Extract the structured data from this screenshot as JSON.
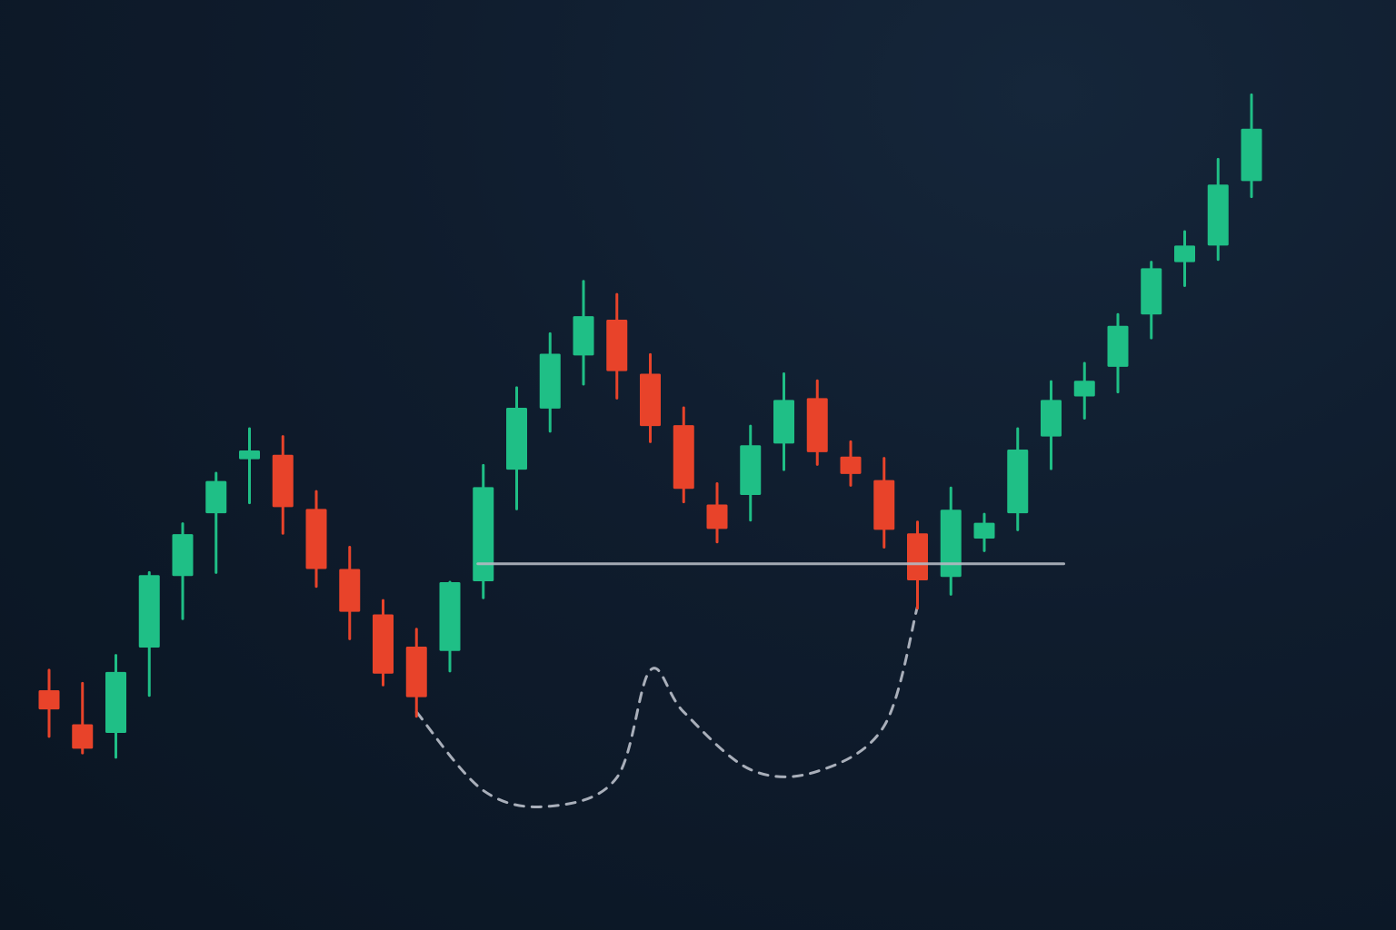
{
  "chart_data": {
    "type": "candlestick",
    "title": "",
    "xlabel": "",
    "ylabel": "",
    "grid": false,
    "legend": "none",
    "axes_visible": false,
    "colors": {
      "up": "#1fbf86",
      "down": "#e8432a",
      "neckline": "#b4b9c2",
      "cup_guide": "#a9afba",
      "background": "#0f1c2d"
    },
    "ylim": [
      0,
      100
    ],
    "candles": [
      {
        "index": 1,
        "open": 25.0,
        "high": 27.3,
        "low": 19.7,
        "close": 22.8
      },
      {
        "index": 2,
        "open": 21.1,
        "high": 25.8,
        "low": 17.8,
        "close": 18.3
      },
      {
        "index": 3,
        "open": 20.1,
        "high": 29.0,
        "low": 17.3,
        "close": 27.1
      },
      {
        "index": 4,
        "open": 29.9,
        "high": 38.5,
        "low": 24.4,
        "close": 38.2
      },
      {
        "index": 5,
        "open": 38.1,
        "high": 44.1,
        "low": 33.2,
        "close": 42.9
      },
      {
        "index": 6,
        "open": 45.3,
        "high": 49.9,
        "low": 38.5,
        "close": 49.0
      },
      {
        "index": 7,
        "open": 51.5,
        "high": 55.0,
        "low": 46.5,
        "close": 52.5
      },
      {
        "index": 8,
        "open": 52.0,
        "high": 54.1,
        "low": 43.0,
        "close": 46.0
      },
      {
        "index": 9,
        "open": 45.8,
        "high": 47.8,
        "low": 36.9,
        "close": 38.9
      },
      {
        "index": 10,
        "open": 38.9,
        "high": 41.4,
        "low": 30.9,
        "close": 34.0
      },
      {
        "index": 11,
        "open": 33.7,
        "high": 35.3,
        "low": 25.6,
        "close": 26.9
      },
      {
        "index": 12,
        "open": 30.0,
        "high": 32.0,
        "low": 22.0,
        "close": 24.2
      },
      {
        "index": 13,
        "open": 29.5,
        "high": 37.4,
        "low": 27.2,
        "close": 37.4
      },
      {
        "index": 14,
        "open": 37.5,
        "high": 50.8,
        "low": 35.6,
        "close": 48.3
      },
      {
        "index": 15,
        "open": 50.3,
        "high": 59.7,
        "low": 45.8,
        "close": 57.4
      },
      {
        "index": 16,
        "open": 57.3,
        "high": 65.9,
        "low": 54.7,
        "close": 63.6
      },
      {
        "index": 17,
        "open": 63.4,
        "high": 71.9,
        "low": 60.1,
        "close": 67.9
      },
      {
        "index": 18,
        "open": 67.5,
        "high": 70.4,
        "low": 58.5,
        "close": 61.6
      },
      {
        "index": 19,
        "open": 61.3,
        "high": 63.5,
        "low": 53.5,
        "close": 55.3
      },
      {
        "index": 20,
        "open": 55.4,
        "high": 57.4,
        "low": 46.6,
        "close": 48.1
      },
      {
        "index": 21,
        "open": 46.3,
        "high": 48.7,
        "low": 42.0,
        "close": 43.5
      },
      {
        "index": 22,
        "open": 47.4,
        "high": 55.3,
        "low": 44.5,
        "close": 53.1
      },
      {
        "index": 23,
        "open": 53.3,
        "high": 61.3,
        "low": 50.3,
        "close": 58.3
      },
      {
        "index": 24,
        "open": 58.5,
        "high": 60.5,
        "low": 50.9,
        "close": 52.3
      },
      {
        "index": 25,
        "open": 51.8,
        "high": 53.5,
        "low": 48.5,
        "close": 49.8
      },
      {
        "index": 26,
        "open": 49.1,
        "high": 51.6,
        "low": 41.4,
        "close": 43.4
      },
      {
        "index": 27,
        "open": 43.0,
        "high": 44.3,
        "low": 34.4,
        "close": 37.6
      },
      {
        "index": 28,
        "open": 38.0,
        "high": 48.2,
        "low": 36.0,
        "close": 45.7
      },
      {
        "index": 29,
        "open": 42.4,
        "high": 45.2,
        "low": 41.0,
        "close": 44.2
      },
      {
        "index": 30,
        "open": 45.3,
        "high": 55.0,
        "low": 43.4,
        "close": 52.6
      },
      {
        "index": 31,
        "open": 54.1,
        "high": 60.4,
        "low": 50.4,
        "close": 58.3
      },
      {
        "index": 32,
        "open": 58.7,
        "high": 62.5,
        "low": 56.2,
        "close": 60.5
      },
      {
        "index": 33,
        "open": 62.1,
        "high": 68.1,
        "low": 59.2,
        "close": 66.8
      },
      {
        "index": 34,
        "open": 68.1,
        "high": 74.1,
        "low": 65.4,
        "close": 73.4
      },
      {
        "index": 35,
        "open": 74.1,
        "high": 77.6,
        "low": 71.4,
        "close": 76.0
      },
      {
        "index": 36,
        "open": 76.0,
        "high": 85.9,
        "low": 74.4,
        "close": 83.0
      },
      {
        "index": 37,
        "open": 83.4,
        "high": 93.3,
        "low": 81.6,
        "close": 89.4
      }
    ],
    "neckline": {
      "value": 39.5,
      "from_index": 14,
      "to_index": 31
    },
    "cup_guide": [
      {
        "index": 12,
        "value": 22.5
      },
      {
        "index": 14,
        "value": 13.5
      },
      {
        "index": 16,
        "value": 11.7
      },
      {
        "index": 18,
        "value": 15.0
      },
      {
        "index": 19,
        "value": 27.3
      },
      {
        "index": 20,
        "value": 22.5
      },
      {
        "index": 22,
        "value": 15.9
      },
      {
        "index": 24,
        "value": 15.7
      },
      {
        "index": 26,
        "value": 20.9
      },
      {
        "index": 27,
        "value": 34.6
      }
    ]
  }
}
